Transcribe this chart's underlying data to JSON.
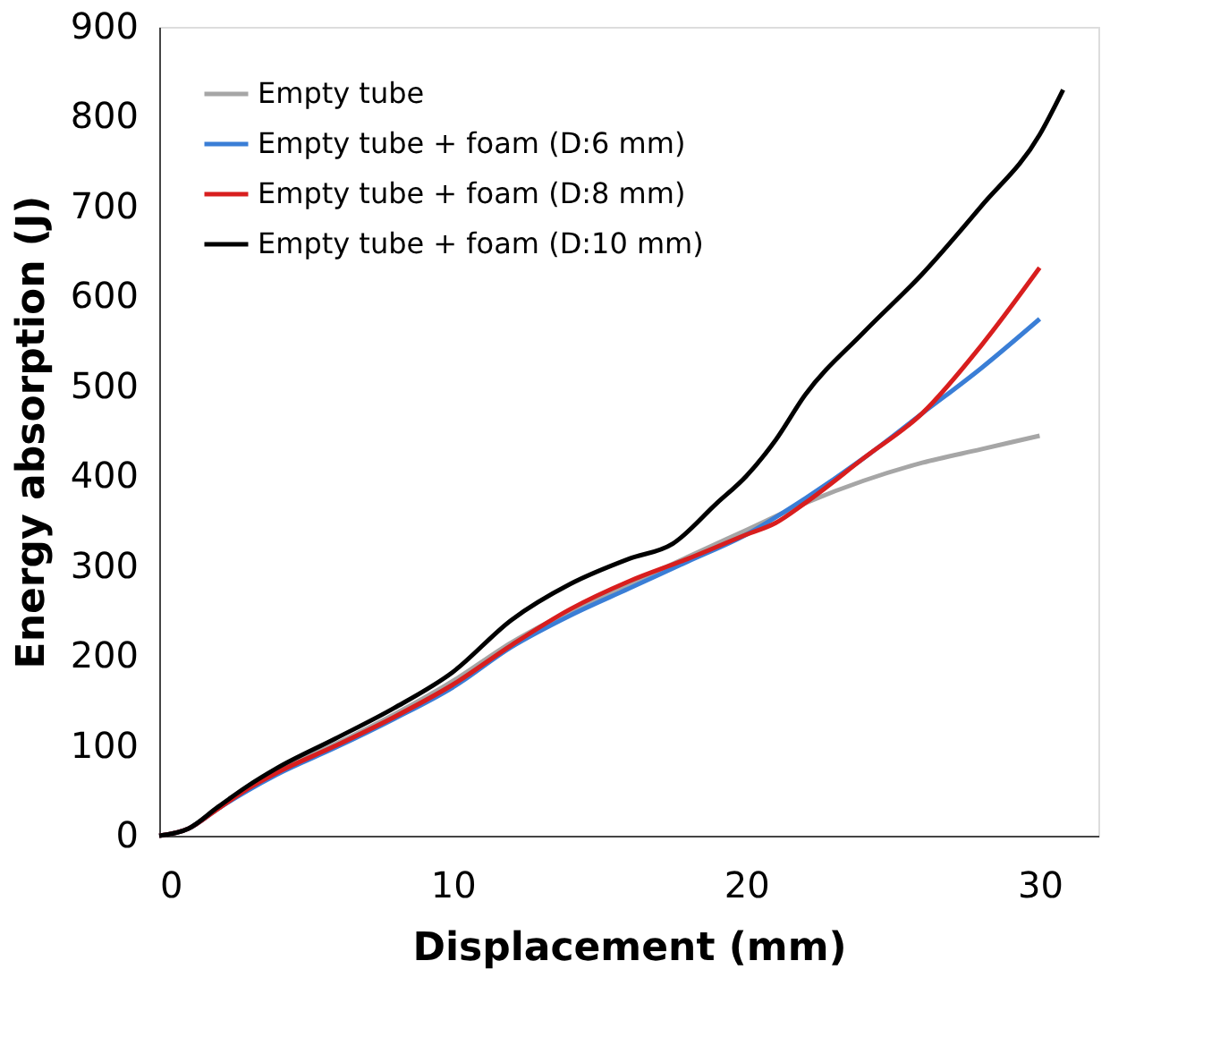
{
  "chart_data": {
    "type": "line",
    "xlabel": "Displacement (mm)",
    "ylabel": "Energy absorption (J)",
    "xlim": [
      0,
      32
    ],
    "ylim": [
      0,
      900
    ],
    "xticks": [
      0,
      10,
      20,
      30
    ],
    "yticks": [
      0,
      100,
      200,
      300,
      400,
      500,
      600,
      700,
      800,
      900
    ],
    "grid": false,
    "legend": "top left",
    "marker": "none",
    "line_style": "solid",
    "series": [
      {
        "name": "Empty tube",
        "color": "#a6a6a6",
        "x": [
          0,
          1,
          2,
          3,
          4,
          6,
          8,
          10,
          12,
          14,
          16,
          18,
          20,
          22,
          24,
          26,
          28,
          30
        ],
        "values": [
          0,
          8,
          30,
          52,
          72,
          102,
          135,
          172,
          215,
          250,
          280,
          310,
          340,
          370,
          395,
          415,
          430,
          445
        ]
      },
      {
        "name": "Empty tube + foam (D:6 mm)",
        "color": "#3a7ed6",
        "x": [
          0,
          1,
          2,
          3,
          4,
          6,
          8,
          10,
          12,
          14,
          16,
          18,
          20,
          22,
          24,
          26,
          28,
          30
        ],
        "values": [
          0,
          8,
          30,
          50,
          68,
          98,
          130,
          165,
          210,
          245,
          275,
          305,
          335,
          375,
          420,
          470,
          520,
          575
        ]
      },
      {
        "name": "Empty tube + foam (D:8 mm)",
        "color": "#d81e1e",
        "x": [
          0,
          1,
          2,
          3,
          4,
          6,
          8,
          10,
          12,
          14,
          16,
          18,
          20,
          21,
          22,
          24,
          26,
          28,
          30
        ],
        "values": [
          0,
          8,
          30,
          52,
          70,
          100,
          132,
          168,
          212,
          252,
          283,
          308,
          335,
          348,
          370,
          420,
          470,
          545,
          632
        ]
      },
      {
        "name": "Empty tube + foam (D:10 mm)",
        "color": "#000000",
        "x": [
          0,
          1,
          2,
          3,
          4,
          6,
          8,
          10,
          12,
          14,
          16,
          17.5,
          19,
          20,
          21,
          22,
          24,
          26,
          28,
          30,
          30.8
        ],
        "values": [
          0,
          8,
          32,
          55,
          75,
          108,
          142,
          182,
          240,
          280,
          308,
          325,
          370,
          400,
          440,
          490,
          560,
          625,
          700,
          780,
          830
        ]
      }
    ]
  }
}
